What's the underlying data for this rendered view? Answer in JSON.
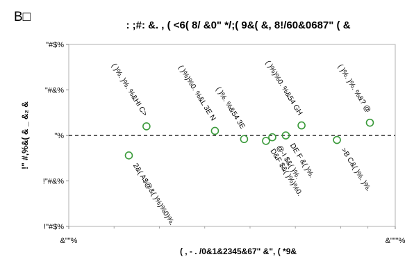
{
  "chart_data": {
    "type": "scatter",
    "panel_label": "B□",
    "title": ": ;#: &. , ( <6( 8/ &0\" */;( 9&( &, 8!/60&0687\" ( &",
    "xlabel": "( , - . /0&1&2345&67\" &\", ( *9&",
    "ylabel": "!\" #,%&( & _ &₂ &",
    "x_ticks": [
      {
        "value": 0,
        "label": "&\"\"%"
      },
      {
        "value": 1000,
        "label": "&\"\"\"%"
      }
    ],
    "y_ticks": [
      {
        "value": 1.0,
        "label": "\"#$%"
      },
      {
        "value": 0.5,
        "label": "\"#&%"
      },
      {
        "value": 0.0,
        "label": "\"%"
      },
      {
        "value": -0.5,
        "label": "!\"#&%"
      },
      {
        "value": -1.0,
        "label": "!\"#$%"
      }
    ],
    "xlim": [
      0,
      1000
    ],
    "ylim": [
      -1.0,
      1.0
    ],
    "log_x": true,
    "reference_line": {
      "y": 0,
      "style": "dashed"
    },
    "grid": false,
    "marker": {
      "shape": "circle",
      "fill": "none",
      "stroke": "#3a9a3a"
    },
    "points": [
      {
        "x": 7.2,
        "y": 0.1,
        "label": "( )%. )%. %&HI C>",
        "label_dir": "up"
      },
      {
        "x": 4.6,
        "y": -0.22,
        "label": "2&( A$@&( )%)%0)%. ",
        "label_dir": "down"
      },
      {
        "x": 41,
        "y": 0.05,
        "label": "( )%)%0. %&L 3E N",
        "label_dir": "up"
      },
      {
        "x": 86,
        "y": -0.04,
        "label": "( )%. %&54 3E",
        "label_dir": "up"
      },
      {
        "x": 150,
        "y": -0.06,
        "label": "D&F $&( )%)%0. ",
        "label_dir": "down"
      },
      {
        "x": 176,
        "y": -0.02,
        "label": "@-I $&( )%. ",
        "label_dir": "down"
      },
      {
        "x": 248,
        "y": 0.0,
        "label": "DE F &( )%. ",
        "label_dir": "down"
      },
      {
        "x": 370,
        "y": 0.11,
        "label": "( )%)%0. %&54 GH",
        "label_dir": "up"
      },
      {
        "x": 910,
        "y": -0.05,
        "label": ">B C&( )%. )%. ",
        "label_dir": "down"
      },
      {
        "x": 2100,
        "y": 0.14,
        "label": "( )%. )%. %&? @",
        "label_dir": "up"
      }
    ]
  }
}
